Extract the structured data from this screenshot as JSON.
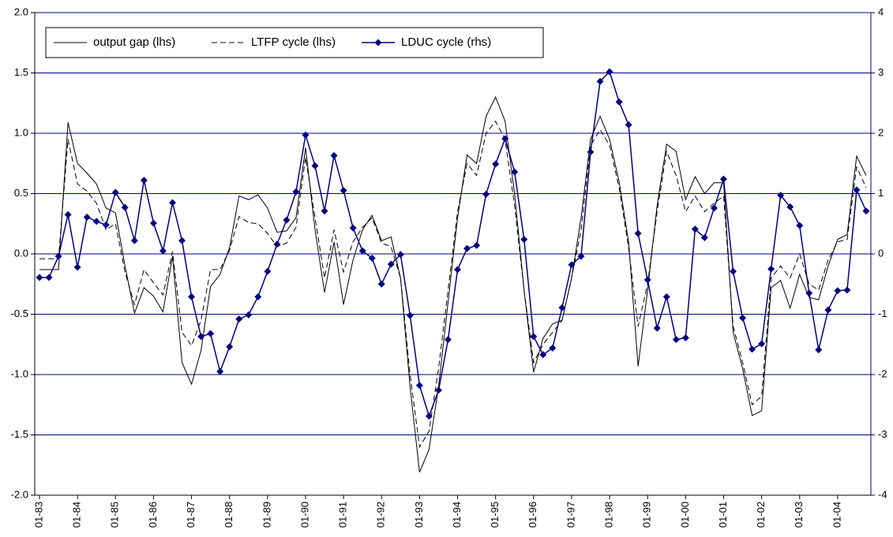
{
  "chart_data": {
    "type": "line",
    "categories": [
      "01-83",
      null,
      null,
      null,
      "01-84",
      null,
      null,
      null,
      "01-85",
      null,
      null,
      null,
      "01-86",
      null,
      null,
      null,
      "01-87",
      null,
      null,
      null,
      "01-88",
      null,
      null,
      null,
      "01-89",
      null,
      null,
      null,
      "01-90",
      null,
      null,
      null,
      "01-91",
      null,
      null,
      null,
      "01-92",
      null,
      null,
      null,
      "01-93",
      null,
      null,
      null,
      "01-94",
      null,
      null,
      null,
      "01-95",
      null,
      null,
      null,
      "01-96",
      null,
      null,
      null,
      "01-97",
      null,
      null,
      null,
      "01-98",
      null,
      null,
      null,
      "01-99",
      null,
      null,
      null,
      "01-00",
      null,
      null,
      null,
      "01-01",
      null,
      null,
      null,
      "01-02",
      null,
      null,
      null,
      "01-03",
      null,
      null,
      null,
      "01-04",
      null,
      null,
      null
    ],
    "series": [
      {
        "name": "output gap (lhs)",
        "color": "#000000",
        "style": "solid",
        "axis": "y",
        "values": [
          -0.13,
          -0.13,
          -0.13,
          1.09,
          0.75,
          0.67,
          0.58,
          0.38,
          0.34,
          -0.1,
          -0.49,
          -0.28,
          -0.35,
          -0.48,
          -0.02,
          -0.9,
          -1.08,
          -0.8,
          -0.27,
          -0.17,
          0.05,
          0.48,
          0.45,
          0.49,
          0.38,
          0.18,
          0.19,
          0.3,
          0.88,
          0.2,
          -0.32,
          0.1,
          -0.42,
          -0.05,
          0.2,
          0.32,
          0.11,
          0.14,
          -0.2,
          -1.1,
          -1.81,
          -1.62,
          -1.1,
          -0.4,
          0.3,
          0.82,
          0.75,
          1.14,
          1.3,
          1.1,
          0.5,
          -0.3,
          -0.98,
          -0.7,
          -0.58,
          -0.55,
          -0.2,
          0.3,
          0.95,
          1.14,
          0.95,
          0.6,
          0.1,
          -0.93,
          -0.3,
          0.4,
          0.91,
          0.85,
          0.45,
          0.64,
          0.5,
          0.59,
          0.59,
          -0.65,
          -0.95,
          -1.34,
          -1.3,
          -0.28,
          -0.22,
          -0.45,
          -0.17,
          -0.36,
          -0.38,
          -0.1,
          0.12,
          0.16,
          0.81,
          0.65
        ]
      },
      {
        "name": "LTFP cycle (lhs)",
        "color": "#000000",
        "style": "dashed",
        "axis": "y",
        "values": [
          -0.04,
          -0.04,
          -0.04,
          0.95,
          0.58,
          0.52,
          0.42,
          0.2,
          0.25,
          -0.15,
          -0.42,
          -0.13,
          -0.24,
          -0.34,
          0.02,
          -0.65,
          -0.76,
          -0.55,
          -0.13,
          -0.13,
          0.03,
          0.31,
          0.26,
          0.25,
          0.17,
          0.06,
          0.09,
          0.22,
          0.8,
          0.3,
          -0.2,
          0.2,
          -0.15,
          0.1,
          0.22,
          0.3,
          0.09,
          0.06,
          -0.2,
          -1.0,
          -1.6,
          -1.47,
          -0.95,
          -0.3,
          0.35,
          0.75,
          0.65,
          1.0,
          1.1,
          0.95,
          0.4,
          -0.3,
          -0.9,
          -0.75,
          -0.65,
          -0.55,
          -0.2,
          0.2,
          0.9,
          1.03,
          0.9,
          0.55,
          0.05,
          -0.6,
          -0.25,
          0.35,
          0.85,
          0.65,
          0.35,
          0.48,
          0.35,
          0.42,
          0.48,
          -0.6,
          -0.9,
          -1.25,
          -1.18,
          -0.2,
          -0.1,
          -0.2,
          0.0,
          -0.25,
          -0.3,
          -0.05,
          0.1,
          0.12,
          0.72,
          0.55
        ]
      },
      {
        "name": "LDUC cycle (rhs)",
        "color": "#000080",
        "style": "solid",
        "marker": "diamond",
        "axis": "y2",
        "values": [
          -0.39,
          -0.39,
          -0.04,
          0.65,
          -0.22,
          0.61,
          0.54,
          0.48,
          1.02,
          0.77,
          0.22,
          1.22,
          0.51,
          0.05,
          0.85,
          0.22,
          -0.71,
          -1.37,
          -1.32,
          -1.95,
          -1.54,
          -1.08,
          -1.01,
          -0.71,
          -0.29,
          0.16,
          0.56,
          1.03,
          1.97,
          1.46,
          0.71,
          1.63,
          1.05,
          0.43,
          0.05,
          -0.07,
          -0.5,
          -0.17,
          -0.01,
          -1.02,
          -2.18,
          -2.69,
          -2.26,
          -1.42,
          -0.26,
          0.09,
          0.14,
          0.99,
          1.49,
          1.91,
          1.36,
          0.24,
          -1.37,
          -1.67,
          -1.56,
          -0.89,
          -0.18,
          -0.04,
          1.69,
          2.86,
          3.02,
          2.52,
          2.14,
          0.34,
          -0.43,
          -1.23,
          -0.71,
          -1.42,
          -1.39,
          0.41,
          0.27,
          0.76,
          1.24,
          -0.29,
          -1.06,
          -1.58,
          -1.49,
          -0.25,
          0.97,
          0.78,
          0.47,
          -0.65,
          -1.59,
          -0.93,
          -0.61,
          -0.6,
          1.06,
          0.71
        ]
      }
    ],
    "ylim": [
      -2,
      2
    ],
    "yticks": [
      {
        "value": -2,
        "label": "-2.0"
      },
      -1.5,
      {
        "value": -1,
        "label": "-1.0"
      },
      -0.5,
      {
        "value": 0,
        "label": "0.0"
      },
      0.5,
      {
        "value": 1,
        "label": "1.0"
      },
      1.5,
      {
        "value": 2,
        "label": "2.0"
      }
    ],
    "y2lim": [
      -4,
      4
    ],
    "y2ticks": [
      -4,
      -3,
      -2,
      -1,
      0,
      1,
      2,
      3,
      4
    ],
    "grid": true,
    "grid_color": "#000080",
    "legend": "top-left"
  }
}
